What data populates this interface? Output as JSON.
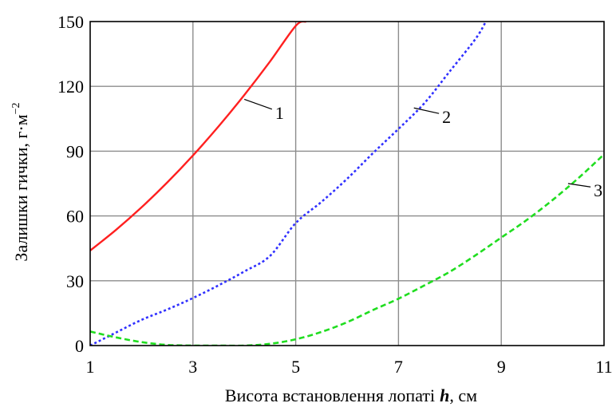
{
  "chart_data": {
    "type": "line",
    "title": "",
    "xlabel": "Висота встановлення лопаті",
    "xlabel_var": "h",
    "xlabel_unit": ", см",
    "ylabel": "Залишки гички, г·м",
    "ylabel_exp": "−2",
    "xlim": [
      1,
      11
    ],
    "ylim": [
      0,
      150
    ],
    "xticks": [
      1,
      3,
      5,
      7,
      9,
      11
    ],
    "yticks": [
      0,
      30,
      60,
      90,
      120,
      150
    ],
    "grid": true,
    "legend": "none",
    "series": [
      {
        "name": "1",
        "color": "#ff2020",
        "style": "solid",
        "x": [
          1,
          1.5,
          2,
          2.5,
          3,
          3.5,
          4,
          4.5,
          5,
          5.2
        ],
        "y": [
          44,
          53.5,
          64,
          75.5,
          88,
          101.5,
          116,
          131.5,
          148,
          150
        ]
      },
      {
        "name": "2",
        "color": "#3030ff",
        "style": "dotted",
        "x": [
          1,
          1.5,
          2,
          2.5,
          3,
          3.5,
          4,
          4.5,
          5,
          5.5,
          6,
          6.5,
          7,
          7.5,
          8,
          8.5,
          8.7
        ],
        "y": [
          0,
          6,
          11.9,
          16.7,
          22,
          27.9,
          34.3,
          41.5,
          56.7,
          66.5,
          77.2,
          89,
          100.3,
          112.1,
          127,
          142,
          150
        ]
      },
      {
        "name": "3",
        "color": "#20dd20",
        "style": "dashed",
        "x": [
          1,
          1.5,
          2,
          2.5,
          3,
          3.5,
          4,
          4.5,
          5,
          5.5,
          6,
          6.5,
          7,
          7.5,
          8,
          8.5,
          9,
          9.5,
          10,
          10.5,
          11
        ],
        "y": [
          6.5,
          3.8,
          1.6,
          0.3,
          0,
          0,
          0,
          0.8,
          2.9,
          6.3,
          10.8,
          16.4,
          21.7,
          27.8,
          34.2,
          41.8,
          50,
          58.2,
          67.4,
          77.5,
          88.5
        ]
      }
    ],
    "annotations": [
      {
        "text": "1",
        "x": 4.6,
        "y": 105,
        "line_to": [
          4.0,
          114
        ]
      },
      {
        "text": "2",
        "x": 7.85,
        "y": 103,
        "line_to": [
          7.3,
          110
        ]
      },
      {
        "text": "3",
        "x": 10.8,
        "y": 69,
        "line_to": [
          10.3,
          75
        ]
      }
    ]
  }
}
